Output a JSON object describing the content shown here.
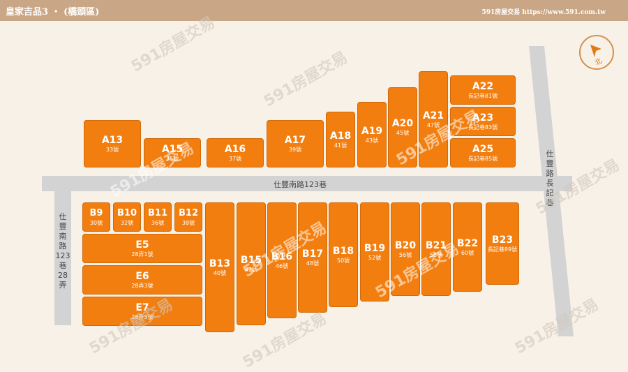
{
  "header": {
    "title": "皇家吉品3 ‧ (橋頭區)",
    "brand": "591房屋交易 https://www.591.com.tw"
  },
  "roads": {
    "main": "仕豐南路123巷",
    "left": [
      "仕",
      "豐",
      "南",
      "路",
      "123",
      "巷",
      "28",
      "弄"
    ],
    "right": [
      "仕",
      "豐",
      "路",
      "長",
      "記",
      "巷"
    ]
  },
  "compass": {
    "label": "北",
    "icon": "north-arrow-icon"
  },
  "watermark": "591房屋交易",
  "lots": {
    "A13": {
      "code": "A13",
      "addr": "33號"
    },
    "A15": {
      "code": "A15",
      "addr": "35號"
    },
    "A16": {
      "code": "A16",
      "addr": "37號"
    },
    "A17": {
      "code": "A17",
      "addr": "39號"
    },
    "A18": {
      "code": "A18",
      "addr": "41號"
    },
    "A19": {
      "code": "A19",
      "addr": "43號"
    },
    "A20": {
      "code": "A20",
      "addr": "45號"
    },
    "A21": {
      "code": "A21",
      "addr": "47號"
    },
    "A22": {
      "code": "A22",
      "addr": "長記巷81號"
    },
    "A23": {
      "code": "A23",
      "addr": "長記巷83號"
    },
    "A25": {
      "code": "A25",
      "addr": "長記巷85號"
    },
    "B9": {
      "code": "B9",
      "addr": "30號"
    },
    "B10": {
      "code": "B10",
      "addr": "32號"
    },
    "B11": {
      "code": "B11",
      "addr": "36號"
    },
    "B12": {
      "code": "B12",
      "addr": "38號"
    },
    "E5": {
      "code": "E5",
      "addr": "28弄1號"
    },
    "E6": {
      "code": "E6",
      "addr": "28弄3號"
    },
    "E7": {
      "code": "E7",
      "addr": "28弄5號"
    },
    "B13": {
      "code": "B13",
      "addr": "40號"
    },
    "B15": {
      "code": "B15",
      "addr": "42號"
    },
    "B16": {
      "code": "B16",
      "addr": "46號"
    },
    "B17": {
      "code": "B17",
      "addr": "48號"
    },
    "B18": {
      "code": "B18",
      "addr": "50號"
    },
    "B19": {
      "code": "B19",
      "addr": "52號"
    },
    "B20": {
      "code": "B20",
      "addr": "56號"
    },
    "B21": {
      "code": "B21",
      "addr": "58號"
    },
    "B22": {
      "code": "B22",
      "addr": "60號"
    },
    "B23": {
      "code": "B23",
      "addr": "長記巷89號"
    }
  },
  "colors": {
    "lot": "#f27e0f",
    "header": "#c9a685",
    "road": "#d3d3d3",
    "background": "#f8f1e7"
  }
}
